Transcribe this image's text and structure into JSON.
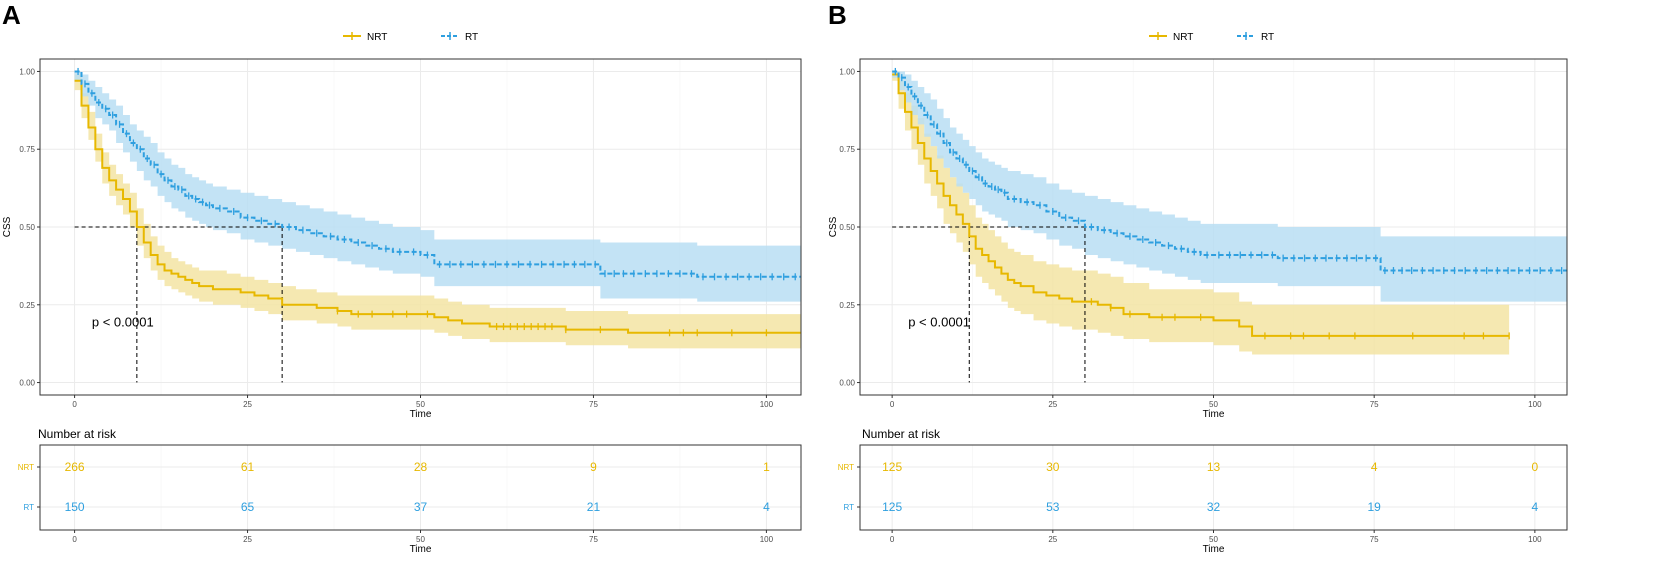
{
  "colors": {
    "nrt": "#E7B800",
    "rt": "#2E9FDF",
    "nrt_fill": "#F3E4A3",
    "rt_fill": "#B9DEF3",
    "grid": "#EBEBEB",
    "frame": "#333333",
    "axis_text": "#4D4D4D"
  },
  "chart_data": [
    {
      "panel": "A",
      "type": "line",
      "subtype": "kaplan-meier",
      "legend": [
        "NRT",
        "RT"
      ],
      "legend_position": "top",
      "xlabel": "Time",
      "ylabel": "CSS",
      "xlim": [
        -5,
        105
      ],
      "ylim": [
        -0.04,
        1.04
      ],
      "xticks": [
        0,
        25,
        50,
        75,
        100
      ],
      "yticks": [
        0.0,
        0.25,
        0.5,
        0.75,
        1.0
      ],
      "ytick_labels": [
        "0.00",
        "0.25",
        "0.50",
        "0.75",
        "1.00"
      ],
      "pvalue": "p < 0.0001",
      "median": {
        "NRT": 9,
        "RT": 30
      },
      "series": [
        {
          "name": "NRT",
          "dashed": false,
          "x": [
            0,
            1,
            2,
            3,
            4,
            5,
            6,
            7,
            8,
            9,
            10,
            11,
            12,
            13,
            14,
            15,
            16,
            17,
            18,
            19,
            20,
            22,
            24,
            26,
            28,
            30,
            32,
            35,
            38,
            40,
            45,
            50,
            52,
            54,
            56,
            60,
            65,
            70,
            71,
            75,
            80,
            90,
            105
          ],
          "y": [
            0.97,
            0.89,
            0.82,
            0.75,
            0.69,
            0.65,
            0.62,
            0.59,
            0.55,
            0.5,
            0.45,
            0.41,
            0.38,
            0.36,
            0.35,
            0.34,
            0.33,
            0.32,
            0.31,
            0.31,
            0.3,
            0.3,
            0.29,
            0.28,
            0.27,
            0.25,
            0.25,
            0.24,
            0.23,
            0.22,
            0.22,
            0.22,
            0.21,
            0.2,
            0.19,
            0.18,
            0.18,
            0.18,
            0.17,
            0.17,
            0.16,
            0.16,
            0.16
          ],
          "lower": [
            0.94,
            0.85,
            0.78,
            0.71,
            0.64,
            0.6,
            0.57,
            0.54,
            0.5,
            0.44,
            0.4,
            0.36,
            0.33,
            0.31,
            0.3,
            0.29,
            0.28,
            0.27,
            0.26,
            0.26,
            0.25,
            0.25,
            0.24,
            0.23,
            0.22,
            0.2,
            0.2,
            0.19,
            0.18,
            0.17,
            0.17,
            0.17,
            0.16,
            0.15,
            0.14,
            0.13,
            0.13,
            0.13,
            0.12,
            0.12,
            0.11,
            0.11,
            0.11
          ],
          "upper": [
            0.99,
            0.93,
            0.87,
            0.8,
            0.74,
            0.7,
            0.67,
            0.64,
            0.61,
            0.56,
            0.51,
            0.47,
            0.44,
            0.42,
            0.4,
            0.39,
            0.38,
            0.37,
            0.36,
            0.36,
            0.36,
            0.35,
            0.34,
            0.33,
            0.32,
            0.31,
            0.3,
            0.29,
            0.28,
            0.28,
            0.28,
            0.28,
            0.27,
            0.26,
            0.25,
            0.24,
            0.24,
            0.24,
            0.23,
            0.23,
            0.22,
            0.22,
            0.22
          ],
          "censor": [
            38,
            41,
            43,
            46,
            48,
            51,
            61,
            62,
            63,
            64,
            65,
            66,
            67,
            68,
            69,
            71,
            76,
            86,
            88,
            90,
            95,
            100
          ]
        },
        {
          "name": "RT",
          "dashed": true,
          "x": [
            0,
            1,
            2,
            3,
            4,
            5,
            6,
            7,
            8,
            9,
            10,
            11,
            12,
            13,
            14,
            15,
            16,
            17,
            18,
            19,
            20,
            22,
            24,
            26,
            28,
            30,
            32,
            34,
            36,
            38,
            40,
            42,
            44,
            46,
            48,
            50,
            52,
            55,
            60,
            65,
            70,
            76,
            80,
            85,
            90,
            95,
            105
          ],
          "y": [
            1.0,
            0.96,
            0.93,
            0.9,
            0.88,
            0.86,
            0.83,
            0.8,
            0.77,
            0.75,
            0.72,
            0.7,
            0.67,
            0.65,
            0.63,
            0.62,
            0.6,
            0.59,
            0.58,
            0.57,
            0.56,
            0.55,
            0.53,
            0.52,
            0.51,
            0.5,
            0.49,
            0.48,
            0.47,
            0.46,
            0.45,
            0.44,
            0.43,
            0.42,
            0.42,
            0.41,
            0.38,
            0.38,
            0.38,
            0.38,
            0.38,
            0.35,
            0.35,
            0.35,
            0.34,
            0.34,
            0.34
          ],
          "lower": [
            0.97,
            0.92,
            0.89,
            0.85,
            0.83,
            0.81,
            0.77,
            0.74,
            0.71,
            0.68,
            0.65,
            0.63,
            0.6,
            0.58,
            0.56,
            0.55,
            0.53,
            0.52,
            0.51,
            0.5,
            0.49,
            0.48,
            0.46,
            0.45,
            0.44,
            0.43,
            0.42,
            0.41,
            0.4,
            0.39,
            0.38,
            0.37,
            0.36,
            0.35,
            0.35,
            0.34,
            0.31,
            0.31,
            0.31,
            0.31,
            0.31,
            0.27,
            0.27,
            0.27,
            0.26,
            0.26,
            0.26
          ],
          "upper": [
            1.0,
            0.99,
            0.97,
            0.95,
            0.93,
            0.91,
            0.89,
            0.86,
            0.83,
            0.81,
            0.79,
            0.77,
            0.74,
            0.72,
            0.7,
            0.69,
            0.67,
            0.66,
            0.65,
            0.64,
            0.63,
            0.62,
            0.61,
            0.6,
            0.59,
            0.58,
            0.57,
            0.56,
            0.55,
            0.54,
            0.53,
            0.52,
            0.51,
            0.5,
            0.5,
            0.49,
            0.46,
            0.46,
            0.46,
            0.46,
            0.46,
            0.45,
            0.45,
            0.45,
            0.44,
            0.44,
            0.44
          ]
        }
      ],
      "risk_table": {
        "title": "Number at risk",
        "times": [
          0,
          25,
          50,
          75,
          100
        ],
        "rows": [
          {
            "name": "NRT",
            "values": [
              "266",
              "61",
              "28",
              "9",
              "1"
            ]
          },
          {
            "name": "RT",
            "values": [
              "150",
              "65",
              "37",
              "21",
              "4"
            ]
          }
        ],
        "xlabel": "Time"
      }
    },
    {
      "panel": "B",
      "type": "line",
      "subtype": "kaplan-meier",
      "legend": [
        "NRT",
        "RT"
      ],
      "legend_position": "top",
      "xlabel": "Time",
      "ylabel": "CSS",
      "xlim": [
        -5,
        105
      ],
      "ylim": [
        -0.04,
        1.04
      ],
      "xticks": [
        0,
        25,
        50,
        75,
        100
      ],
      "yticks": [
        0.0,
        0.25,
        0.5,
        0.75,
        1.0
      ],
      "ytick_labels": [
        "0.00",
        "0.25",
        "0.50",
        "0.75",
        "1.00"
      ],
      "pvalue": "p < 0.0001",
      "median": {
        "NRT": 12,
        "RT": 30
      },
      "series": [
        {
          "name": "NRT",
          "dashed": false,
          "x": [
            0,
            1,
            2,
            3,
            4,
            5,
            6,
            7,
            8,
            9,
            10,
            11,
            12,
            13,
            14,
            15,
            16,
            17,
            18,
            19,
            20,
            22,
            24,
            26,
            28,
            30,
            32,
            34,
            36,
            40,
            45,
            50,
            52,
            54,
            56,
            60,
            70,
            80,
            90,
            96
          ],
          "y": [
            0.99,
            0.93,
            0.87,
            0.82,
            0.77,
            0.72,
            0.68,
            0.64,
            0.6,
            0.57,
            0.54,
            0.51,
            0.47,
            0.43,
            0.41,
            0.39,
            0.37,
            0.35,
            0.33,
            0.32,
            0.31,
            0.29,
            0.28,
            0.27,
            0.26,
            0.26,
            0.25,
            0.24,
            0.22,
            0.21,
            0.21,
            0.2,
            0.2,
            0.18,
            0.15,
            0.15,
            0.15,
            0.15,
            0.15,
            0.15
          ],
          "lower": [
            0.97,
            0.88,
            0.81,
            0.75,
            0.7,
            0.64,
            0.6,
            0.56,
            0.51,
            0.48,
            0.45,
            0.42,
            0.38,
            0.34,
            0.32,
            0.3,
            0.28,
            0.26,
            0.24,
            0.23,
            0.22,
            0.2,
            0.19,
            0.18,
            0.17,
            0.17,
            0.16,
            0.15,
            0.14,
            0.13,
            0.13,
            0.12,
            0.12,
            0.1,
            0.09,
            0.09,
            0.09,
            0.09,
            0.09,
            0.09
          ],
          "upper": [
            1.0,
            0.97,
            0.93,
            0.89,
            0.85,
            0.8,
            0.76,
            0.73,
            0.69,
            0.66,
            0.64,
            0.61,
            0.57,
            0.53,
            0.51,
            0.49,
            0.47,
            0.45,
            0.43,
            0.42,
            0.41,
            0.39,
            0.38,
            0.37,
            0.36,
            0.36,
            0.35,
            0.34,
            0.32,
            0.3,
            0.3,
            0.29,
            0.29,
            0.26,
            0.25,
            0.25,
            0.25,
            0.25,
            0.25,
            0.25
          ],
          "censor": [
            31,
            34,
            37,
            42,
            44,
            48,
            58,
            62,
            64,
            68,
            72,
            81,
            89,
            92,
            96
          ]
        },
        {
          "name": "RT",
          "dashed": true,
          "x": [
            0,
            1,
            2,
            3,
            4,
            5,
            6,
            7,
            8,
            9,
            10,
            11,
            12,
            13,
            14,
            15,
            16,
            17,
            18,
            20,
            22,
            24,
            26,
            28,
            30,
            32,
            34,
            36,
            38,
            40,
            42,
            44,
            46,
            48,
            50,
            55,
            60,
            65,
            70,
            76,
            80,
            85,
            90,
            95,
            105
          ],
          "y": [
            1.0,
            0.98,
            0.95,
            0.92,
            0.89,
            0.86,
            0.83,
            0.8,
            0.77,
            0.74,
            0.72,
            0.7,
            0.68,
            0.66,
            0.64,
            0.63,
            0.62,
            0.61,
            0.59,
            0.58,
            0.57,
            0.55,
            0.53,
            0.52,
            0.5,
            0.49,
            0.48,
            0.47,
            0.46,
            0.45,
            0.44,
            0.43,
            0.42,
            0.41,
            0.41,
            0.41,
            0.4,
            0.4,
            0.4,
            0.36,
            0.36,
            0.36,
            0.36,
            0.36,
            0.36
          ],
          "lower": [
            0.98,
            0.94,
            0.9,
            0.86,
            0.83,
            0.79,
            0.76,
            0.72,
            0.69,
            0.66,
            0.63,
            0.61,
            0.59,
            0.57,
            0.55,
            0.54,
            0.53,
            0.52,
            0.5,
            0.49,
            0.48,
            0.46,
            0.44,
            0.43,
            0.41,
            0.4,
            0.39,
            0.38,
            0.37,
            0.36,
            0.35,
            0.34,
            0.33,
            0.32,
            0.32,
            0.32,
            0.31,
            0.31,
            0.31,
            0.26,
            0.26,
            0.26,
            0.26,
            0.26,
            0.26
          ],
          "upper": [
            1.0,
            1.0,
            0.99,
            0.97,
            0.95,
            0.93,
            0.91,
            0.88,
            0.85,
            0.82,
            0.8,
            0.78,
            0.76,
            0.74,
            0.72,
            0.71,
            0.7,
            0.69,
            0.68,
            0.67,
            0.66,
            0.64,
            0.62,
            0.61,
            0.6,
            0.59,
            0.58,
            0.57,
            0.56,
            0.55,
            0.54,
            0.53,
            0.52,
            0.51,
            0.51,
            0.51,
            0.5,
            0.5,
            0.5,
            0.47,
            0.47,
            0.47,
            0.47,
            0.47,
            0.47
          ]
        }
      ],
      "risk_table": {
        "title": "Number at risk",
        "times": [
          0,
          25,
          50,
          75,
          100
        ],
        "rows": [
          {
            "name": "NRT",
            "values": [
              "125",
              "30",
              "13",
              "4",
              "0"
            ]
          },
          {
            "name": "RT",
            "values": [
              "125",
              "53",
              "32",
              "19",
              "4"
            ]
          }
        ],
        "xlabel": "Time"
      }
    }
  ]
}
